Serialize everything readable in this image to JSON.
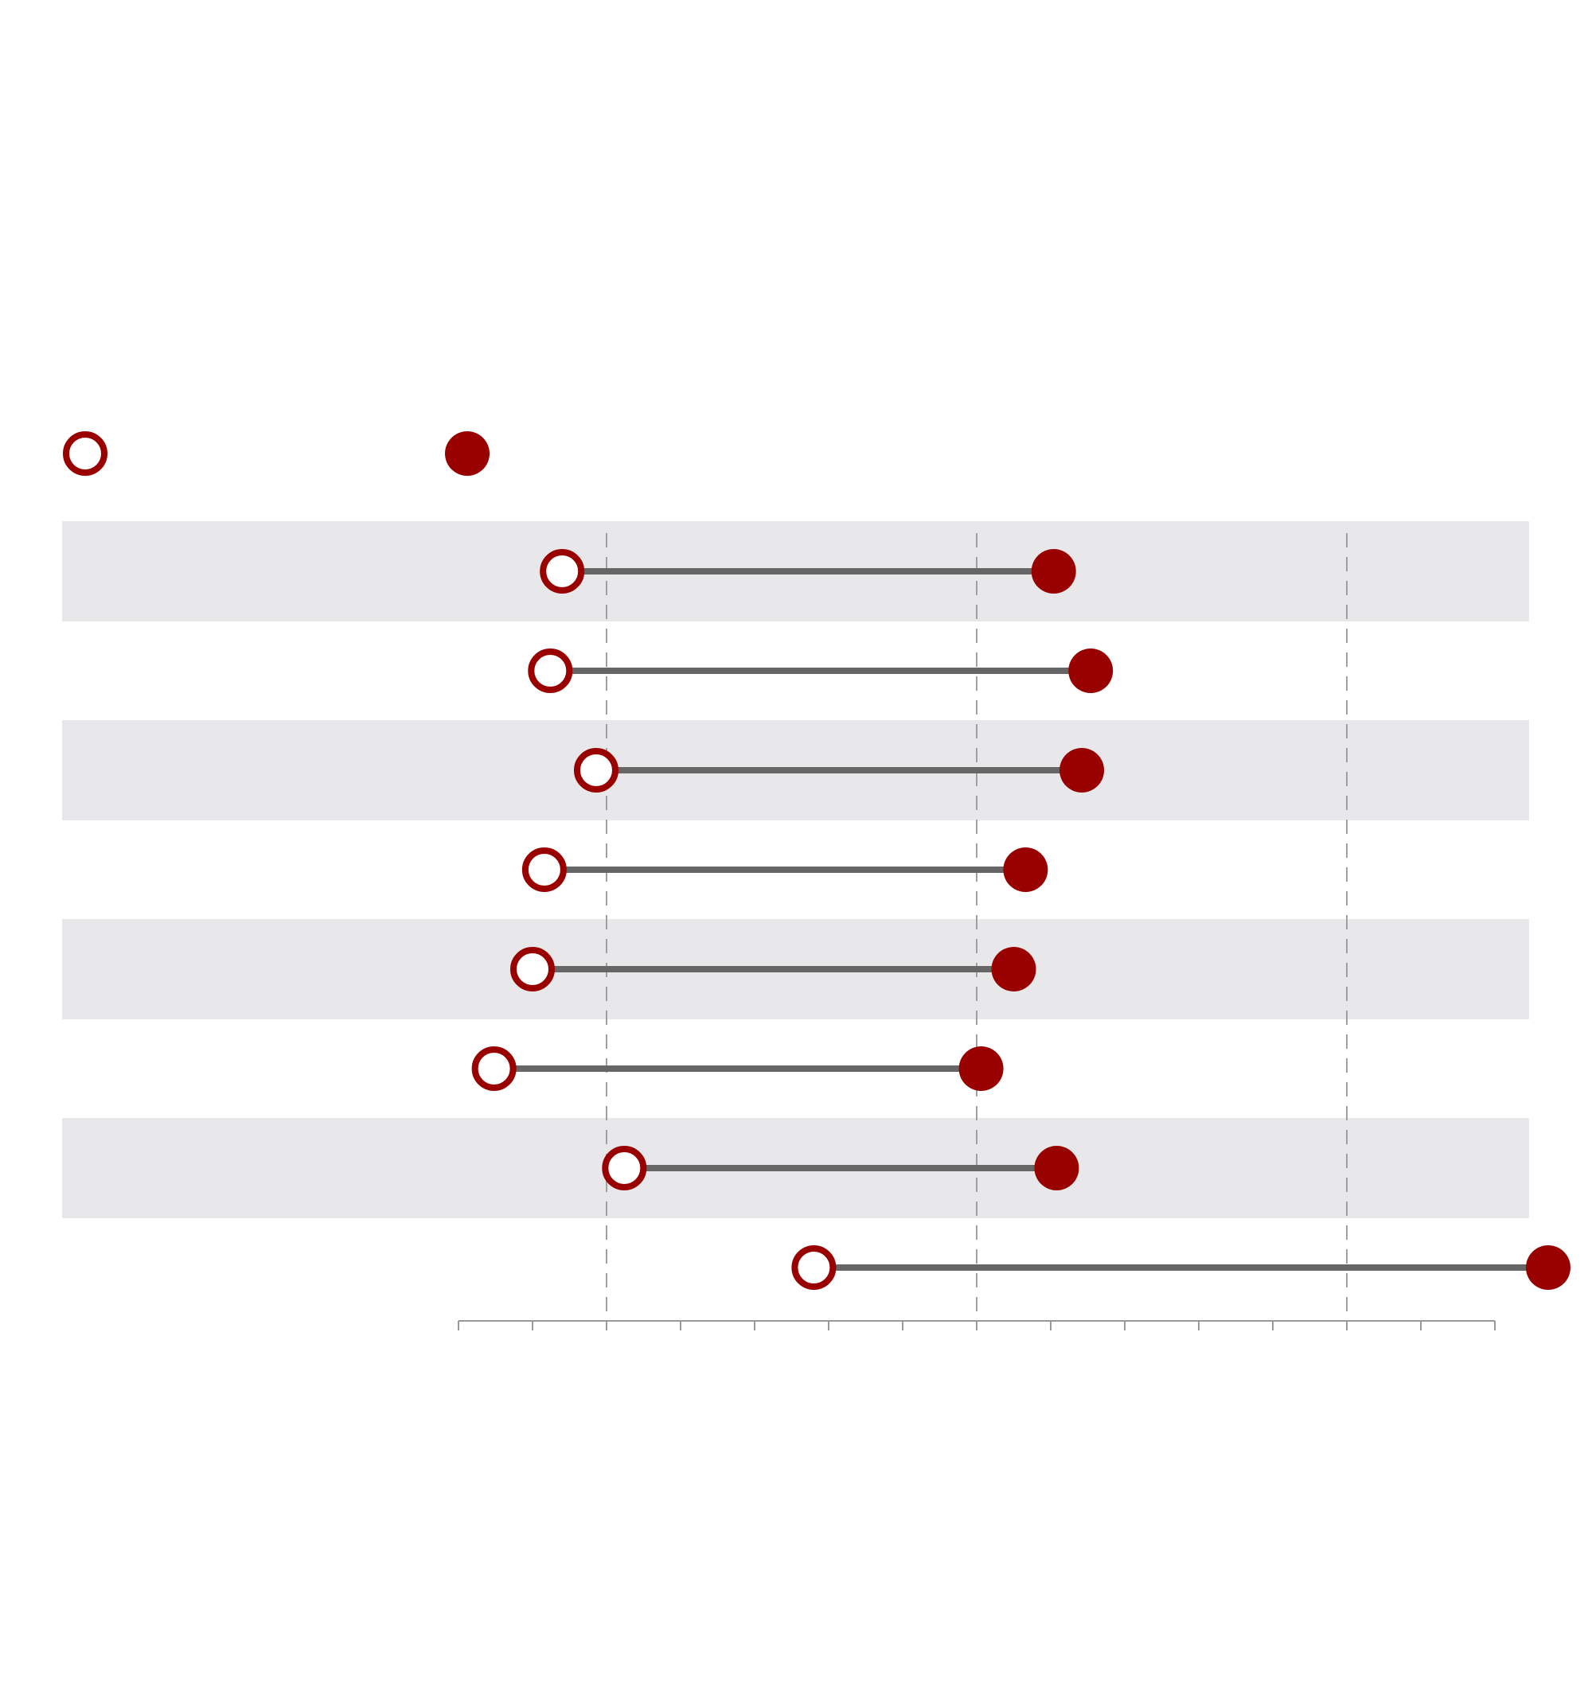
{
  "chart_data": {
    "type": "dumbbell",
    "title": "",
    "xlabel": "",
    "ylabel": "",
    "grid": true,
    "legend_position": "top-left",
    "xlim": [
      -2,
      12
    ],
    "x_gridlines": [
      0,
      5,
      10
    ],
    "x_ticks": [
      -2,
      -1,
      0,
      1,
      2,
      3,
      4,
      5,
      6,
      7,
      8,
      9,
      10,
      11,
      12
    ],
    "tick_labels": [],
    "categories": [
      "",
      "",
      "",
      "",
      "",
      "",
      "",
      ""
    ],
    "series": [
      {
        "name": "",
        "marker": "open-circle",
        "values": [
          -0.6,
          -0.76,
          -0.14,
          -0.84,
          -1.0,
          -1.52,
          0.24,
          2.8
        ]
      },
      {
        "name": "",
        "marker": "filled-circle",
        "values": [
          6.04,
          6.54,
          6.42,
          5.66,
          5.5,
          5.06,
          6.08,
          12.72
        ]
      }
    ]
  },
  "colors": {
    "marker": "#990000",
    "connector": "#666666",
    "band": "#e8e8ea",
    "grid": "#a0a0a0",
    "axis": "#999999"
  }
}
